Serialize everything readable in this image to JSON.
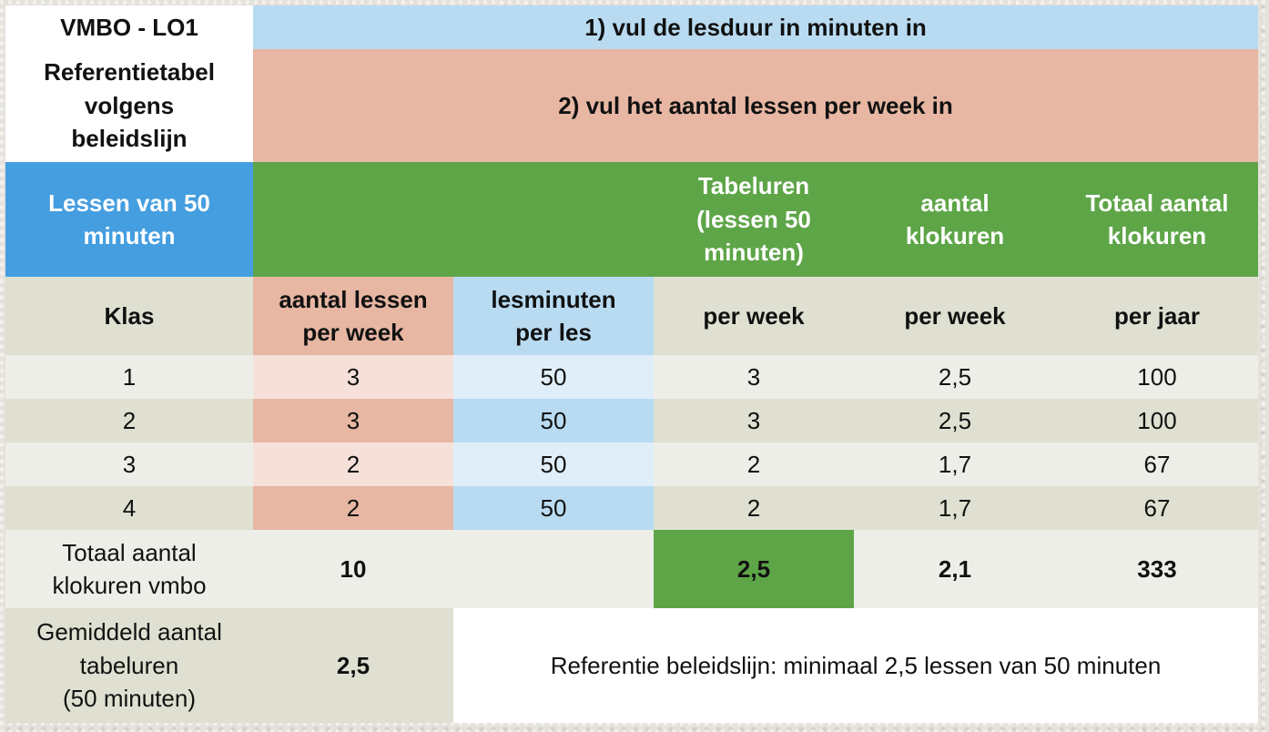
{
  "header": {
    "title": "VMBO - LO1",
    "step1": "1) vul de lesduur in minuten in",
    "subtitle": "Referentietabel\nvolgens\nbeleidslijn",
    "step2": "2) vul het aantal lessen per week in"
  },
  "group_row": {
    "lessons_type": "Lessen van 50\nminuten",
    "tabeluren": "Tabeluren\n(lessen 50\nminuten)",
    "klokuren": "aantal\nklokuren",
    "totaal": "Totaal aantal\nklokuren"
  },
  "columns": {
    "klas": "Klas",
    "lessen_per_week": "aantal lessen\nper week",
    "lesminuten": "lesminuten\nper les",
    "tabeluren_week": "per week",
    "klokuren_week": "per week",
    "klokuren_jaar": "per jaar"
  },
  "rows": [
    {
      "klas": "1",
      "lessen": "3",
      "minuten": "50",
      "tabeluren": "3",
      "klokuren": "2,5",
      "jaar": "100"
    },
    {
      "klas": "2",
      "lessen": "3",
      "minuten": "50",
      "tabeluren": "3",
      "klokuren": "2,5",
      "jaar": "100"
    },
    {
      "klas": "3",
      "lessen": "2",
      "minuten": "50",
      "tabeluren": "2",
      "klokuren": "1,7",
      "jaar": "67"
    },
    {
      "klas": "4",
      "lessen": "2",
      "minuten": "50",
      "tabeluren": "2",
      "klokuren": "1,7",
      "jaar": "67"
    }
  ],
  "totals": {
    "label": "Totaal aantal\nklokuren vmbo",
    "lessen": "10",
    "tabeluren": "2,5",
    "klokuren": "2,1",
    "jaar": "333"
  },
  "average": {
    "label": "Gemiddeld aantal\ntabeluren\n(50 minuten)",
    "value": "2,5",
    "reference": "Referentie beleidslijn: minimaal 2,5 lessen van 50 minuten"
  },
  "colors": {
    "light_blue": "#b9dbf2",
    "salmon": "#e7b7a3",
    "blue": "#449ee0",
    "green": "#5ea548",
    "khaki": "#dfe0d1",
    "cream": "#eeeee8"
  }
}
